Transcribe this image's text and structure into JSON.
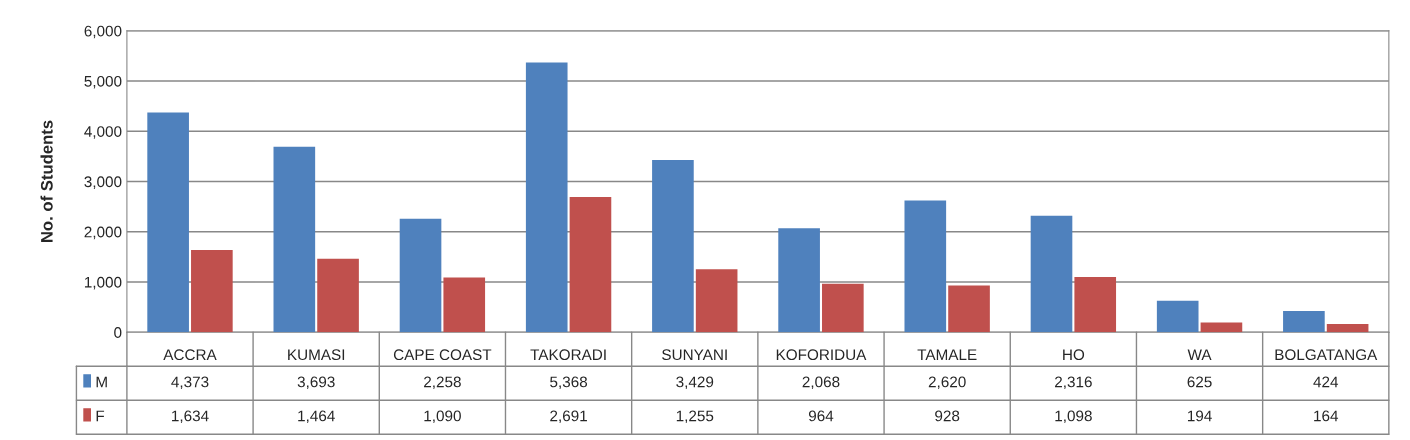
{
  "chart_data": {
    "type": "bar",
    "ylabel": "No. of Students",
    "categories": [
      "ACCRA",
      "KUMASI",
      "CAPE COAST",
      "TAKORADI",
      "SUNYANI",
      "KOFORIDUA",
      "TAMALE",
      "HO",
      "WA",
      "BOLGATANGA"
    ],
    "series": [
      {
        "name": "M",
        "color": "#4f81bd",
        "values": [
          4373,
          3693,
          2258,
          5368,
          3429,
          2068,
          2620,
          2316,
          625,
          424
        ],
        "value_labels": [
          "4,373",
          "3,693",
          "2,258",
          "5,368",
          "3,429",
          "2,068",
          "2,620",
          "2,316",
          "625",
          "424"
        ]
      },
      {
        "name": "F",
        "color": "#c0504d",
        "values": [
          1634,
          1464,
          1090,
          2691,
          1255,
          964,
          928,
          1098,
          194,
          164
        ],
        "value_labels": [
          "1,634",
          "1,464",
          "1,090",
          "2,691",
          "1,255",
          "964",
          "928",
          "1,098",
          "194",
          "164"
        ]
      }
    ],
    "ylim": [
      0,
      6000
    ],
    "yticks": [
      0,
      {
        "value": 1000,
        "label": "1,000"
      },
      {
        "value": 2000,
        "label": "2,000"
      },
      {
        "value": 3000,
        "label": "3,000"
      },
      {
        "value": 4000,
        "label": "4,000"
      },
      {
        "value": 5000,
        "label": "5,000"
      },
      {
        "value": 6000,
        "label": "6,000"
      }
    ],
    "grid": "y",
    "legend": "bottom"
  }
}
